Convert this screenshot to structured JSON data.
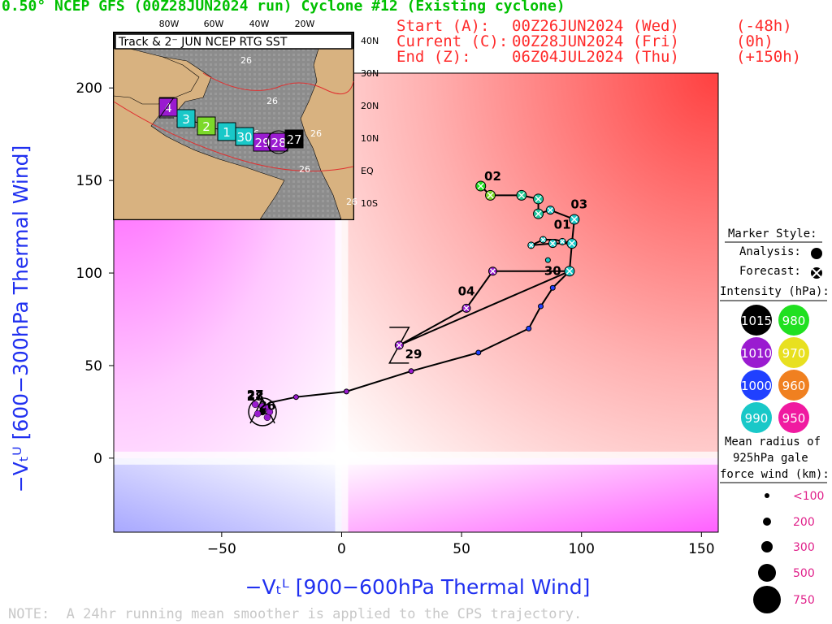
{
  "header": {
    "title": "0.50° NCEP GFS (00Z28JUN2024 run) Cyclone #12 (Existing cyclone)",
    "start_label": "Start (A):",
    "start_time": "00Z26JUN2024 (Wed)",
    "start_offset": "(-48h)",
    "current_label": "Current (C):",
    "current_time": "00Z28JUN2024 (Fri)",
    "current_offset": "(0h)",
    "end_label": "End (Z):",
    "end_time": "06Z04JUL2024 (Thu)",
    "end_offset": "(+150h)"
  },
  "note": "NOTE:  A 24hr running mean smoother is applied to the CPS trajectory.",
  "inset": {
    "title": "Track & 2⁻ JUN NCEP RTG SST",
    "lon_labels": [
      "80W",
      "60W",
      "40W",
      "20W"
    ],
    "lat_labels": [
      "40N",
      "30N",
      "20N",
      "10N",
      "EQ",
      "10S"
    ],
    "sst_labels": [
      "26",
      "26",
      "26",
      "26",
      "26",
      "26"
    ],
    "day_boxes": [
      {
        "label": "4",
        "color": "#9a1bd0"
      },
      {
        "label": "3",
        "color": "#19c8c8"
      },
      {
        "label": "2",
        "color": "#7cd92a"
      },
      {
        "label": "1",
        "color": "#19c8c8"
      },
      {
        "label": "30",
        "color": "#19c8c8"
      },
      {
        "label": "29",
        "color": "#9a1bd0"
      },
      {
        "label": "28",
        "color": "#9a1bd0"
      },
      {
        "label": "27",
        "color": "#000000"
      }
    ]
  },
  "legend": {
    "marker_style": "Marker Style:",
    "analysis": "Analysis:",
    "forecast": "Forecast:",
    "intensity": "Intensity (hPa):",
    "intensity_items": [
      {
        "label": "1015",
        "color": "#000000"
      },
      {
        "label": "980",
        "color": "#20e020"
      },
      {
        "label": "1010",
        "color": "#9a1bd0"
      },
      {
        "label": "970",
        "color": "#e8e020"
      },
      {
        "label": "1000",
        "color": "#2040ff"
      },
      {
        "label": "960",
        "color": "#f08020"
      },
      {
        "label": "990",
        "color": "#19c8c8"
      },
      {
        "label": "950",
        "color": "#f01aa0"
      }
    ],
    "radius_title_1": "Mean radius of",
    "radius_title_2": "925hPa gale",
    "radius_title_3": "force wind (km):",
    "radius_items": [
      "<100",
      "200",
      "300",
      "500",
      "750"
    ]
  },
  "chart_data": {
    "type": "scatter",
    "xlabel": "−Vₜᴸ [900−600hPa Thermal Wind]",
    "ylabel": "−Vₜᵁ [600−300hPa Thermal Wind]",
    "xlim": [
      -95,
      157
    ],
    "ylim": [
      -40,
      208
    ],
    "xticks": [
      -50,
      0,
      50,
      100,
      150
    ],
    "yticks": [
      0,
      50,
      100,
      150,
      200
    ],
    "analysis": [
      {
        "x": -33,
        "y": 25,
        "color": "#000000",
        "size": 4
      },
      {
        "x": -35,
        "y": 24,
        "color": "#9a1bd0",
        "size": 4
      },
      {
        "x": -31,
        "y": 27,
        "color": "#9a1bd0",
        "size": 4
      },
      {
        "x": -33,
        "y": 28,
        "color": "#9a1bd0",
        "size": 4
      },
      {
        "x": -36,
        "y": 29,
        "color": "#9a1bd0",
        "size": 4
      },
      {
        "x": -31,
        "y": 22,
        "color": "#9a1bd0",
        "size": 4
      },
      {
        "x": -30,
        "y": 25,
        "color": "#9a1bd0",
        "size": 4
      }
    ],
    "track": [
      {
        "x": -33,
        "y": 25
      },
      {
        "x": -32,
        "y": 28
      },
      {
        "x": -30,
        "y": 30
      },
      {
        "x": -19,
        "y": 33
      },
      {
        "x": 2,
        "y": 36
      },
      {
        "x": 29,
        "y": 47
      },
      {
        "x": 57,
        "y": 57
      },
      {
        "x": 78,
        "y": 70
      },
      {
        "x": 83,
        "y": 82
      },
      {
        "x": 88,
        "y": 92
      },
      {
        "x": 95,
        "y": 101
      },
      {
        "x": 63,
        "y": 101
      },
      {
        "x": 52,
        "y": 81
      },
      {
        "x": 24,
        "y": 61
      },
      {
        "x": 95,
        "y": 101
      },
      {
        "x": 96,
        "y": 116
      },
      {
        "x": 88,
        "y": 116
      },
      {
        "x": 79,
        "y": 115
      },
      {
        "x": 84,
        "y": 118
      },
      {
        "x": 89,
        "y": 118
      },
      {
        "x": 96,
        "y": 116
      },
      {
        "x": 97,
        "y": 129
      },
      {
        "x": 87,
        "y": 134
      },
      {
        "x": 82,
        "y": 132
      },
      {
        "x": 82,
        "y": 140
      },
      {
        "x": 75,
        "y": 142
      },
      {
        "x": 62,
        "y": 142
      },
      {
        "x": 58,
        "y": 147
      }
    ],
    "forecast_points": [
      {
        "x": -19,
        "y": 33,
        "color": "#9a1bd0",
        "r": 3
      },
      {
        "x": 2,
        "y": 36,
        "color": "#9a1bd0",
        "r": 3
      },
      {
        "x": 29,
        "y": 47,
        "color": "#9a1bd0",
        "r": 3
      },
      {
        "x": 57,
        "y": 57,
        "color": "#2040ff",
        "r": 3
      },
      {
        "x": 78,
        "y": 70,
        "color": "#2040ff",
        "r": 3
      },
      {
        "x": 83,
        "y": 82,
        "color": "#2040ff",
        "r": 3
      },
      {
        "x": 88,
        "y": 92,
        "color": "#2040ff",
        "r": 3
      },
      {
        "x": 95,
        "y": 101,
        "color": "#19c8c8",
        "r": 6
      },
      {
        "x": 63,
        "y": 101,
        "color": "#9a1bd0",
        "r": 5
      },
      {
        "x": 52,
        "y": 81,
        "color": "#9a1bd0",
        "r": 5
      },
      {
        "x": 24,
        "y": 61,
        "color": "#9a1bd0",
        "r": 5
      },
      {
        "x": 96,
        "y": 116,
        "color": "#19c8c8",
        "r": 6
      },
      {
        "x": 88,
        "y": 116,
        "color": "#19c8c8",
        "r": 5
      },
      {
        "x": 92,
        "y": 117,
        "color": "#19c8c8",
        "r": 4
      },
      {
        "x": 79,
        "y": 115,
        "color": "#19c8c8",
        "r": 4
      },
      {
        "x": 84,
        "y": 118,
        "color": "#19c8c8",
        "r": 4
      },
      {
        "x": 86,
        "y": 107,
        "color": "#19c8c8",
        "r": 3
      },
      {
        "x": 97,
        "y": 129,
        "color": "#19c8c8",
        "r": 6
      },
      {
        "x": 87,
        "y": 134,
        "color": "#19c8c8",
        "r": 5
      },
      {
        "x": 82,
        "y": 132,
        "color": "#20c8a0",
        "r": 6
      },
      {
        "x": 82,
        "y": 140,
        "color": "#20c8a0",
        "r": 6
      },
      {
        "x": 75,
        "y": 142,
        "color": "#20c890",
        "r": 6
      },
      {
        "x": 62,
        "y": 142,
        "color": "#7cd92a",
        "r": 6
      },
      {
        "x": 58,
        "y": 147,
        "color": "#20e020",
        "r": 6
      }
    ],
    "labels": [
      {
        "text": "02",
        "x": 63,
        "y": 150
      },
      {
        "text": "03",
        "x": 99,
        "y": 135
      },
      {
        "text": "01",
        "x": 92,
        "y": 124
      },
      {
        "text": "30",
        "x": 88,
        "y": 99
      },
      {
        "text": "04",
        "x": 52,
        "y": 88
      },
      {
        "text": "29",
        "x": 30,
        "y": 54
      },
      {
        "text": "27",
        "x": -36,
        "y": 32
      },
      {
        "text": "28",
        "x": -36,
        "y": 31
      },
      {
        "text": "26",
        "x": -31,
        "y": 26
      }
    ],
    "start_marker": {
      "label": "A",
      "x": -33,
      "y": 25
    },
    "end_marker": {
      "label": "Z",
      "x": 24,
      "y": 61
    },
    "current_marker": {
      "label": "C",
      "x": -33,
      "y": 25
    }
  }
}
